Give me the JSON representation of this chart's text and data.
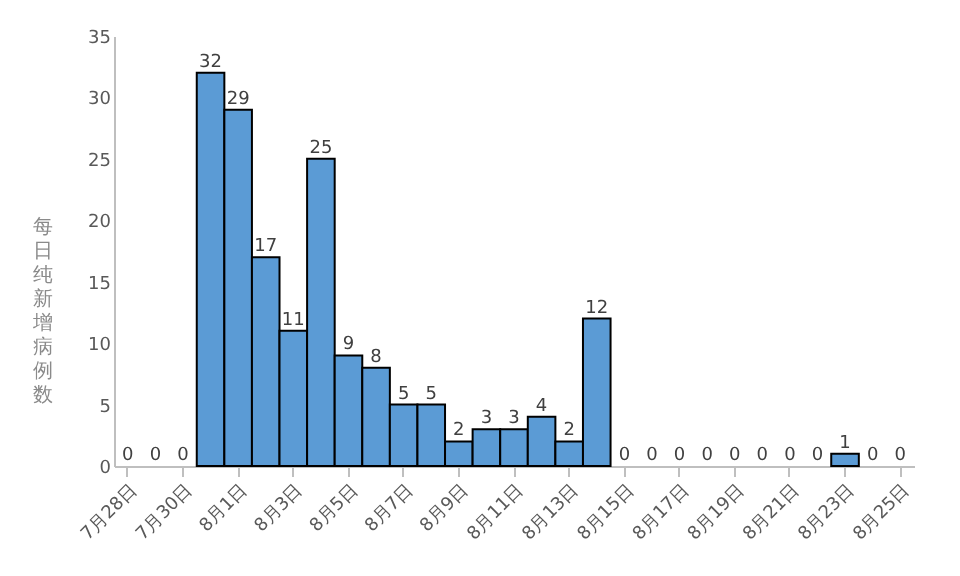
{
  "chart_data": {
    "type": "bar",
    "ylabel": "每日纯新增病例数",
    "categories": [
      "7月28日",
      null,
      "7月30日",
      null,
      "8月1日",
      null,
      "8月3日",
      null,
      "8月5日",
      null,
      "8月7日",
      null,
      "8月9日",
      null,
      "8月11日",
      null,
      "8月13日",
      null,
      "8月15日",
      null,
      "8月17日",
      null,
      "8月19日",
      null,
      "8月21日",
      null,
      "8月23日",
      null,
      "8月25日"
    ],
    "values": [
      0,
      0,
      0,
      32,
      29,
      17,
      11,
      25,
      9,
      8,
      5,
      5,
      2,
      3,
      3,
      4,
      2,
      12,
      0,
      0,
      0,
      0,
      0,
      0,
      0,
      0,
      1,
      0,
      0
    ],
    "color": "#5b9bd5",
    "data_labels": true,
    "grid": false,
    "ylim": [
      0,
      35
    ],
    "yticks": [
      0,
      5,
      10,
      15,
      20,
      25,
      30,
      35
    ]
  }
}
